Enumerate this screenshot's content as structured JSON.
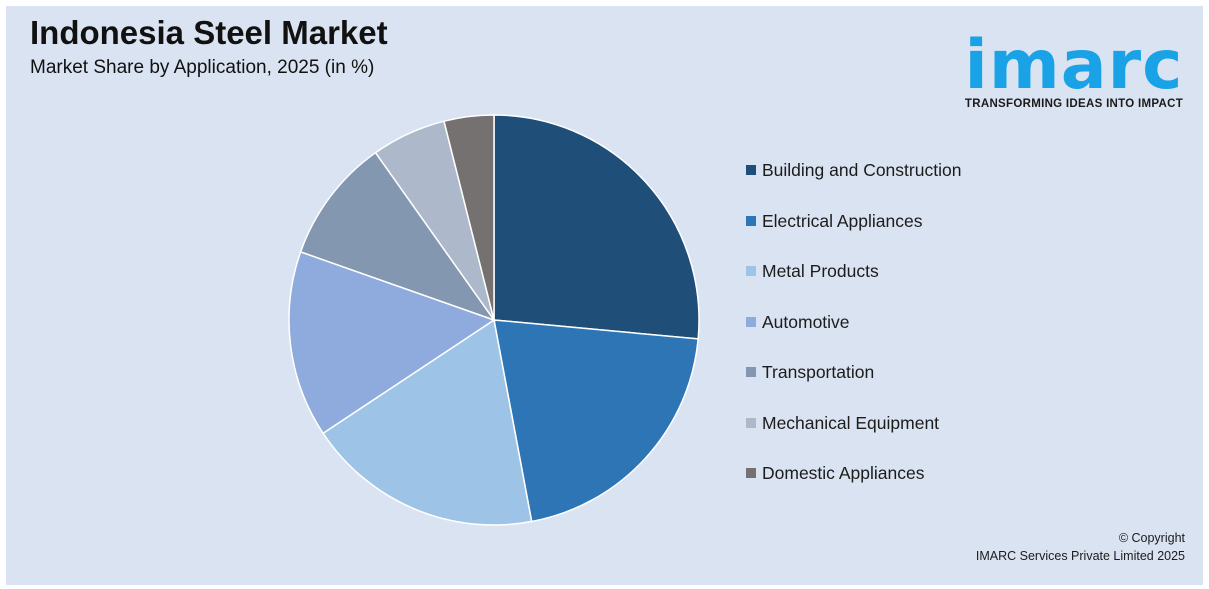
{
  "header": {
    "title": "Indonesia Steel Market",
    "subtitle": "Market Share by Application, 2025 (in %)"
  },
  "logo": {
    "word": "imarc",
    "tagline": "TRANSFORMING IDEAS INTO IMPACT",
    "color": "#1aa2e6"
  },
  "chart_data": {
    "type": "pie",
    "title": "Indonesia Steel Market",
    "subtitle": "Market Share by Application, 2025 (in %)",
    "start": "12 o'clock",
    "direction": "clockwise",
    "legend_position": "right",
    "slices": [
      {
        "label": "Building and Construction",
        "value": 27,
        "color": "#1f4e79"
      },
      {
        "label": "Electrical Appliances",
        "value": 21,
        "color": "#2e75b6"
      },
      {
        "label": "Metal Products",
        "value": 19,
        "color": "#9dc3e6"
      },
      {
        "label": "Automotive",
        "value": 15,
        "color": "#8faadc"
      },
      {
        "label": "Transportation",
        "value": 10,
        "color": "#8497b0"
      },
      {
        "label": "Mechanical Equipment",
        "value": 6,
        "color": "#adb9ca"
      },
      {
        "label": "Domestic Appliances",
        "value": 4,
        "color": "#767171"
      }
    ]
  },
  "footer": {
    "copyright_line1": "© Copyright",
    "copyright_line2": "IMARC Services Private Limited 2025"
  }
}
